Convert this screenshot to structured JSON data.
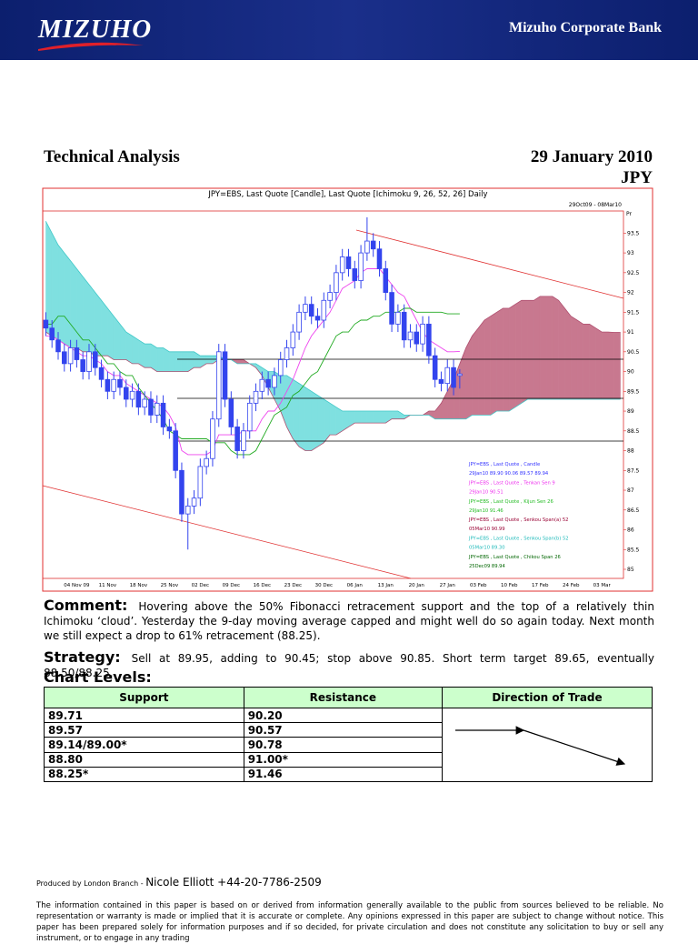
{
  "header": {
    "logo": "MIZUHO",
    "bank": "Mizuho Corporate Bank"
  },
  "title": "Technical Analysis",
  "date": "29 January 2010",
  "currency": "JPY",
  "chart_data": {
    "type": "candlestick",
    "title": "JPY=EBS, Last Quote [Candle], Last Quote [Ichimoku 9, 26, 52, 26] Daily",
    "subtitle": "29Oct09 - 08Mar10",
    "y_unit": "Pr",
    "categories": [
      null,
      null,
      null,
      null,
      null,
      "04 Nov 09",
      null,
      null,
      null,
      null,
      "11 Nov",
      null,
      null,
      null,
      null,
      "18 Nov",
      null,
      null,
      null,
      null,
      "25 Nov",
      null,
      null,
      null,
      null,
      "02 Dec",
      null,
      null,
      null,
      null,
      "09 Dec",
      null,
      null,
      null,
      null,
      "16 Dec",
      null,
      null,
      null,
      null,
      "23 Dec",
      null,
      null,
      null,
      null,
      "30 Dec",
      null,
      null,
      null,
      null,
      "06 Jan",
      null,
      null,
      null,
      null,
      "13 Jan",
      null,
      null,
      null,
      null,
      "20 Jan",
      null,
      null,
      null,
      null,
      "27 Jan",
      null,
      null,
      null,
      null,
      "03 Feb",
      null,
      null,
      null,
      null,
      "10 Feb",
      null,
      null,
      null,
      null,
      "17 Feb",
      null,
      null,
      null,
      null,
      "24 Feb",
      null,
      null,
      null,
      null,
      "03 Mar",
      null,
      null,
      null
    ],
    "ylim": [
      84.77,
      94.06
    ],
    "yticks": [
      85,
      85.5,
      86,
      86.5,
      87,
      87.5,
      88,
      88.5,
      89,
      89.5,
      90,
      90.5,
      91,
      91.5,
      92,
      92.5,
      93,
      93.5
    ],
    "candles": {
      "color": "#3344ee",
      "open": [
        91.3,
        91.1,
        90.8,
        90.5,
        90.2,
        90.6,
        90.3,
        90.0,
        90.5,
        90.1,
        89.8,
        89.5,
        89.8,
        89.6,
        89.3,
        89.5,
        89.1,
        89.3,
        88.9,
        89.2,
        88.6,
        88.5,
        87.5,
        86.4,
        86.6,
        86.8,
        87.6,
        87.8,
        88.8,
        90.5,
        89.3,
        88.6,
        88.0,
        88.5,
        89.2,
        89.5,
        89.8,
        89.6,
        89.9,
        90.3,
        90.6,
        91.0,
        91.5,
        91.7,
        91.4,
        91.3,
        91.8,
        92.0,
        92.5,
        92.9,
        92.6,
        92.3,
        93.0,
        93.3,
        93.1,
        92.6,
        92.0,
        91.2,
        91.5,
        90.8,
        91.0,
        90.7,
        91.2,
        90.4,
        89.8,
        89.7,
        90.1,
        89.9,
        null,
        null,
        null,
        null,
        null,
        null,
        null,
        null,
        null,
        null,
        null,
        null,
        null,
        null,
        null,
        null,
        null,
        null,
        null,
        null,
        null,
        null,
        null,
        null,
        null,
        null
      ],
      "high": [
        91.5,
        91.3,
        91.0,
        90.7,
        90.8,
        90.8,
        90.5,
        90.7,
        90.7,
        90.3,
        90.0,
        90.0,
        90.0,
        89.8,
        89.7,
        89.7,
        89.5,
        89.5,
        89.4,
        89.4,
        88.8,
        88.7,
        87.7,
        86.8,
        87.0,
        87.8,
        88.0,
        89.0,
        90.7,
        90.7,
        89.5,
        88.8,
        88.7,
        89.4,
        89.7,
        90.0,
        90.0,
        90.1,
        90.5,
        90.8,
        91.2,
        91.7,
        91.9,
        91.9,
        91.6,
        92.0,
        92.2,
        92.7,
        93.1,
        93.1,
        92.8,
        93.2,
        93.9,
        93.5,
        93.3,
        92.8,
        92.2,
        91.7,
        91.7,
        91.2,
        91.2,
        91.4,
        91.4,
        90.6,
        90.0,
        90.3,
        90.3,
        90.06,
        null,
        null,
        null,
        null,
        null,
        null,
        null,
        null,
        null,
        null,
        null,
        null,
        null,
        null,
        null,
        null,
        null,
        null,
        null,
        null,
        null,
        null,
        null,
        null,
        null,
        null
      ],
      "low": [
        90.9,
        90.6,
        90.3,
        90.0,
        90.0,
        90.1,
        89.8,
        89.8,
        89.9,
        89.6,
        89.3,
        89.3,
        89.4,
        89.1,
        89.1,
        88.9,
        88.9,
        88.7,
        88.7,
        88.4,
        88.3,
        87.3,
        86.2,
        85.5,
        86.4,
        86.6,
        87.4,
        87.6,
        88.6,
        89.1,
        88.4,
        87.8,
        87.8,
        88.3,
        89.0,
        89.3,
        89.4,
        89.4,
        89.7,
        90.1,
        90.4,
        90.8,
        91.3,
        91.2,
        91.1,
        91.1,
        91.6,
        91.8,
        92.3,
        92.4,
        92.1,
        92.1,
        92.8,
        92.9,
        92.4,
        91.8,
        91.0,
        91.0,
        90.6,
        90.6,
        90.5,
        90.5,
        90.2,
        89.6,
        89.5,
        89.5,
        89.4,
        89.57,
        null,
        null,
        null,
        null,
        null,
        null,
        null,
        null,
        null,
        null,
        null,
        null,
        null,
        null,
        null,
        null,
        null,
        null,
        null,
        null,
        null,
        null,
        null,
        null,
        null,
        null
      ],
      "close": [
        91.1,
        90.8,
        90.5,
        90.2,
        90.6,
        90.3,
        90.0,
        90.5,
        90.1,
        89.8,
        89.5,
        89.8,
        89.6,
        89.3,
        89.5,
        89.1,
        89.3,
        88.9,
        89.2,
        88.6,
        88.5,
        87.5,
        86.4,
        86.6,
        86.8,
        87.6,
        87.8,
        88.8,
        90.5,
        89.3,
        88.6,
        88.0,
        88.5,
        89.2,
        89.5,
        89.8,
        89.6,
        89.9,
        90.3,
        90.6,
        91.0,
        91.5,
        91.7,
        91.4,
        91.3,
        91.8,
        92.0,
        92.5,
        92.9,
        92.6,
        92.3,
        93.0,
        93.3,
        93.1,
        92.6,
        92.0,
        91.2,
        91.5,
        90.8,
        91.0,
        90.7,
        91.2,
        90.4,
        89.8,
        89.7,
        90.1,
        89.6,
        89.94,
        null,
        null,
        null,
        null,
        null,
        null,
        null,
        null,
        null,
        null,
        null,
        null,
        null,
        null,
        null,
        null,
        null,
        null,
        null,
        null,
        null,
        null,
        null,
        null,
        null,
        null
      ]
    },
    "lines": [
      {
        "color": "#ee44ee",
        "values": [
          90.9,
          90.9,
          90.8,
          90.7,
          90.6,
          90.5,
          90.4,
          90.4,
          90.3,
          90.2,
          90.0,
          89.9,
          89.9,
          89.7,
          89.6,
          89.5,
          89.4,
          89.3,
          89.2,
          89.1,
          88.9,
          88.6,
          88.0,
          87.9,
          87.9,
          87.9,
          87.9,
          88.0,
          88.4,
          88.4,
          88.4,
          88.4,
          88.5,
          88.5,
          88.5,
          88.8,
          89.0,
          89.0,
          89.2,
          89.5,
          89.8,
          90.2,
          90.6,
          90.9,
          91.1,
          91.3,
          91.5,
          91.8,
          92.1,
          92.2,
          92.3,
          92.5,
          92.6,
          92.6,
          92.6,
          92.4,
          92.2,
          92.0,
          91.9,
          91.6,
          91.3,
          91.0,
          90.8,
          90.7,
          90.6,
          90.5,
          90.5,
          90.51,
          null,
          null,
          null,
          null,
          null,
          null,
          null,
          null,
          null,
          null,
          null,
          null,
          null,
          null,
          null,
          null,
          null,
          null,
          null,
          null,
          null,
          null,
          null,
          null,
          null,
          null
        ]
      },
      {
        "color": "#22aa22",
        "values": [
          91.2,
          91.2,
          91.4,
          91.4,
          91.2,
          91.0,
          90.8,
          90.8,
          90.6,
          90.4,
          90.2,
          90.2,
          90.0,
          89.9,
          89.9,
          89.6,
          89.4,
          89.2,
          89.0,
          88.8,
          88.5,
          88.4,
          88.3,
          88.3,
          88.3,
          88.3,
          88.3,
          88.2,
          88.2,
          88.2,
          88.0,
          87.9,
          87.9,
          87.9,
          88.0,
          88.3,
          88.6,
          88.9,
          89.0,
          89.1,
          89.4,
          89.5,
          89.7,
          89.9,
          90.0,
          90.3,
          90.6,
          90.9,
          91.0,
          91.0,
          91.2,
          91.3,
          91.3,
          91.4,
          91.4,
          91.5,
          91.5,
          91.5,
          91.6,
          91.6,
          91.5,
          91.5,
          91.5,
          91.5,
          91.5,
          91.46,
          91.46,
          91.46,
          null,
          null,
          null,
          null,
          null,
          null,
          null,
          null,
          null,
          null,
          null,
          null,
          null,
          null,
          null,
          null,
          null,
          null,
          null,
          null,
          null,
          null,
          null,
          null,
          null,
          null
        ]
      }
    ],
    "cloud": {
      "color_a": "#b05070",
      "color_b": "#40c8c8",
      "fill_a_above": "#c8788f",
      "fill_b_above": "#7fe0e0",
      "span_a": [
        91.0,
        90.9,
        90.8,
        90.7,
        90.6,
        90.6,
        90.5,
        90.5,
        90.4,
        90.4,
        90.4,
        90.3,
        90.3,
        90.3,
        90.2,
        90.2,
        90.1,
        90.1,
        90.0,
        90.0,
        90.0,
        90.0,
        90.0,
        90.0,
        90.1,
        90.1,
        90.2,
        90.2,
        90.3,
        90.3,
        90.3,
        90.3,
        90.3,
        90.2,
        90.1,
        89.9,
        89.6,
        89.3,
        89.0,
        88.6,
        88.3,
        88.1,
        88.0,
        88.0,
        88.1,
        88.2,
        88.4,
        88.4,
        88.5,
        88.6,
        88.7,
        88.7,
        88.7,
        88.7,
        88.7,
        88.7,
        88.8,
        88.8,
        88.8,
        88.9,
        88.9,
        88.9,
        89.0,
        89.0,
        89.2,
        89.5,
        89.8,
        90.2,
        90.6,
        90.9,
        91.1,
        91.3,
        91.4,
        91.5,
        91.6,
        91.6,
        91.7,
        91.8,
        91.8,
        91.8,
        91.9,
        91.9,
        91.9,
        91.8,
        91.6,
        91.4,
        91.3,
        91.2,
        91.2,
        91.1,
        91.0,
        91.0,
        90.99,
        90.99
      ],
      "span_b": [
        93.8,
        93.5,
        93.2,
        93.0,
        92.8,
        92.6,
        92.4,
        92.2,
        92.0,
        91.8,
        91.6,
        91.4,
        91.2,
        91.0,
        90.9,
        90.8,
        90.7,
        90.7,
        90.6,
        90.6,
        90.5,
        90.5,
        90.5,
        90.5,
        90.5,
        90.4,
        90.4,
        90.4,
        90.4,
        90.3,
        90.3,
        90.2,
        90.2,
        90.2,
        90.2,
        90.1,
        90.0,
        90.0,
        89.9,
        89.9,
        89.8,
        89.7,
        89.6,
        89.5,
        89.4,
        89.3,
        89.2,
        89.1,
        89.0,
        89.0,
        89.0,
        89.0,
        89.0,
        89.0,
        89.0,
        89.0,
        89.0,
        89.0,
        88.9,
        88.9,
        88.9,
        88.9,
        88.9,
        88.8,
        88.8,
        88.8,
        88.8,
        88.8,
        88.8,
        88.9,
        88.9,
        88.9,
        88.9,
        89.0,
        89.0,
        89.0,
        89.1,
        89.2,
        89.3,
        89.3,
        89.3,
        89.3,
        89.3,
        89.3,
        89.3,
        89.3,
        89.3,
        89.3,
        89.3,
        89.3,
        89.3,
        89.3,
        89.3,
        89.3
      ]
    },
    "legend": [
      {
        "text": "JPY=EBS , Last Quote , Candle",
        "value_text": "29Jan10 89.90 90.06 89.57 89.94",
        "color": "#3333ff"
      },
      {
        "text": "JPY=EBS , Last Quote , Tenkan Sen 9",
        "value_text": "29Jan10 90.51",
        "color": "#ee33ee"
      },
      {
        "text": "JPY=EBS , Last Quote , Kijun Sen 26",
        "value_text": "29Jan10 91.46",
        "color": "#22bb22"
      },
      {
        "text": "JPY=EBS , Last Quote , Senkou Span(a) 52",
        "value_text": "05Mar10 90.99",
        "color": "#990033"
      },
      {
        "text": "JPY=EBS , Last Quote , Senkou Span(b) 52",
        "value_text": "05Mar10 89.30",
        "color": "#22bbbb"
      },
      {
        "text": "JPY=EBS , Last Quote , Chikou Span 26",
        "value_text": "25Dec09 89.94",
        "color": "#006600"
      }
    ]
  },
  "comment": {
    "label": "Comment:",
    "text": "Hovering above the 50% Fibonacci retracement support and the top of a relatively thin Ichimoku ‘cloud’.  Yesterday the 9-day moving average capped and might well do so again today.  Next month we still expect a drop to 61% retracement (88.25)."
  },
  "strategy": {
    "label": "Strategy:",
    "text": "Sell at 89.95, adding to 90.45; stop above 90.85.  Short term target 89.65, eventually 88.50/88.25."
  },
  "levels": {
    "title": "Chart Levels:",
    "columns": [
      "Support",
      "Resistance",
      "Direction of Trade"
    ],
    "rows": [
      [
        "89.71",
        "90.20"
      ],
      [
        "89.57",
        "90.57"
      ],
      [
        "89.14/89.00*",
        "90.78"
      ],
      [
        "88.80",
        "91.00*"
      ],
      [
        "88.25*",
        "91.46"
      ]
    ]
  },
  "footer": {
    "produced": "Produced by London Branch - ",
    "contact": "Nicole Elliott +44-20-7786-2509",
    "disclaimer": "The information contained in this paper is based on or derived from information generally available to the public from sources believed to be reliable.  No representation or warranty is made or implied that it is accurate or complete.  Any opinions expressed in this paper are subject to change without notice.  This paper has been prepared solely for information purposes and if so decided, for private circulation and does not constitute any solicitation to buy or sell any instrument, or to engage in any trading"
  }
}
